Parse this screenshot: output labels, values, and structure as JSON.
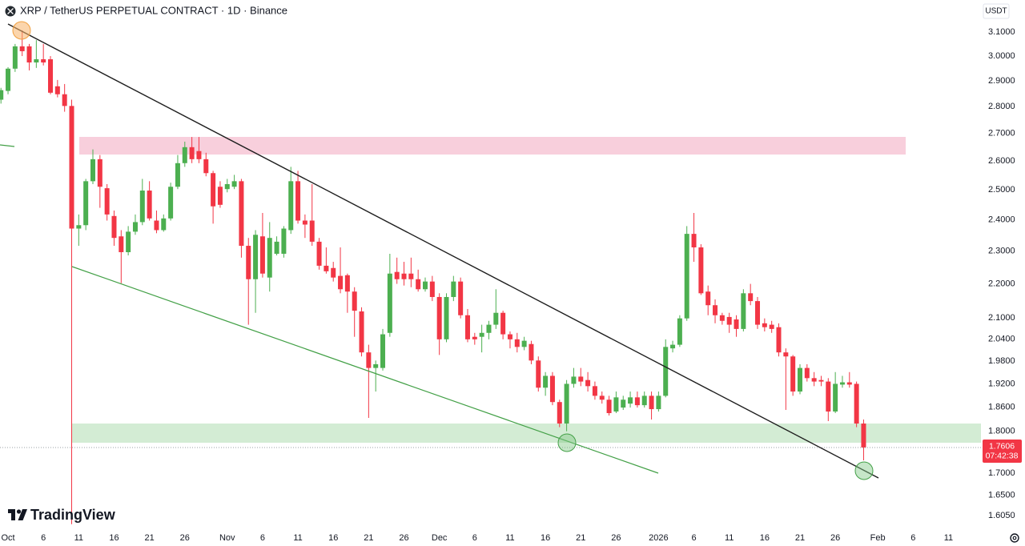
{
  "chart_data": {
    "type": "candlestick",
    "title": "XRP / TetherUS PERPETUAL CONTRACT · 1D · Binance",
    "currency": "USDT",
    "brand": "TradingView",
    "countdown": "07:42:38",
    "log_scale": true,
    "grid": false,
    "up_color": "#4caf50",
    "down_color": "#f23645",
    "ylim": [
      1.577,
      3.238
    ],
    "yticks": [
      {
        "value": 3.1,
        "label": "3.1000"
      },
      {
        "value": 3.0,
        "label": "3.0000"
      },
      {
        "value": 2.9,
        "label": "2.9000"
      },
      {
        "value": 2.8,
        "label": "2.8000"
      },
      {
        "value": 2.7,
        "label": "2.7000"
      },
      {
        "value": 2.6,
        "label": "2.6000"
      },
      {
        "value": 2.5,
        "label": "2.5000"
      },
      {
        "value": 2.4,
        "label": "2.4000"
      },
      {
        "value": 2.3,
        "label": "2.3000"
      },
      {
        "value": 2.2,
        "label": "2.2000"
      },
      {
        "value": 2.1,
        "label": "2.1000"
      },
      {
        "value": 2.04,
        "label": "2.0400"
      },
      {
        "value": 1.98,
        "label": "1.9800"
      },
      {
        "value": 1.92,
        "label": "1.9200"
      },
      {
        "value": 1.86,
        "label": "1.8600"
      },
      {
        "value": 1.8,
        "label": "1.8000"
      },
      {
        "value": 1.7,
        "label": "1.7000"
      },
      {
        "value": 1.65,
        "label": "1.6500"
      },
      {
        "value": 1.605,
        "label": "1.6050"
      }
    ],
    "xticks": [
      {
        "value": "Oct 1",
        "label": "Oct"
      },
      {
        "value": "Oct 6",
        "label": "6"
      },
      {
        "value": "Oct 11",
        "label": "11"
      },
      {
        "value": "Oct 16",
        "label": "16"
      },
      {
        "value": "Oct 21",
        "label": "21"
      },
      {
        "value": "Oct 26",
        "label": "26"
      },
      {
        "value": "Nov 1",
        "label": "Nov"
      },
      {
        "value": "Nov 6",
        "label": "6"
      },
      {
        "value": "Nov 11",
        "label": "11"
      },
      {
        "value": "Nov 16",
        "label": "16"
      },
      {
        "value": "Nov 21",
        "label": "21"
      },
      {
        "value": "Nov 26",
        "label": "26"
      },
      {
        "value": "Dec 1",
        "label": "Dec"
      },
      {
        "value": "Dec 6",
        "label": "6"
      },
      {
        "value": "Dec 11",
        "label": "11"
      },
      {
        "value": "Dec 16",
        "label": "16"
      },
      {
        "value": "Dec 21",
        "label": "21"
      },
      {
        "value": "Dec 26",
        "label": "26"
      },
      {
        "value": "Jan 1",
        "label": "2026"
      },
      {
        "value": "Jan 6",
        "label": "6"
      },
      {
        "value": "Jan 11",
        "label": "11"
      },
      {
        "value": "Jan 16",
        "label": "16"
      },
      {
        "value": "Jan 21",
        "label": "21"
      },
      {
        "value": "Jan 26",
        "label": "26"
      },
      {
        "value": "Feb 1",
        "label": "Feb"
      },
      {
        "value": "Feb 6",
        "label": "6"
      },
      {
        "value": "Feb 11",
        "label": "11"
      }
    ],
    "x": [
      "Sep 30",
      "Oct 1",
      "Oct 2",
      "Oct 3",
      "Oct 4",
      "Oct 5",
      "Oct 6",
      "Oct 7",
      "Oct 8",
      "Oct 9",
      "Oct 10",
      "Oct 11",
      "Oct 12",
      "Oct 13",
      "Oct 14",
      "Oct 15",
      "Oct 16",
      "Oct 17",
      "Oct 18",
      "Oct 19",
      "Oct 20",
      "Oct 21",
      "Oct 22",
      "Oct 23",
      "Oct 24",
      "Oct 25",
      "Oct 26",
      "Oct 27",
      "Oct 28",
      "Oct 29",
      "Oct 30",
      "Oct 31",
      "Nov 1",
      "Nov 2",
      "Nov 3",
      "Nov 4",
      "Nov 5",
      "Nov 6",
      "Nov 7",
      "Nov 8",
      "Nov 9",
      "Nov 10",
      "Nov 11",
      "Nov 12",
      "Nov 13",
      "Nov 14",
      "Nov 15",
      "Nov 16",
      "Nov 17",
      "Nov 18",
      "Nov 19",
      "Nov 20",
      "Nov 21",
      "Nov 22",
      "Nov 23",
      "Nov 24",
      "Nov 25",
      "Nov 26",
      "Nov 27",
      "Nov 28",
      "Nov 29",
      "Nov 30",
      "Dec 1",
      "Dec 2",
      "Dec 3",
      "Dec 4",
      "Dec 5",
      "Dec 6",
      "Dec 7",
      "Dec 8",
      "Dec 9",
      "Dec 10",
      "Dec 11",
      "Dec 12",
      "Dec 13",
      "Dec 14",
      "Dec 15",
      "Dec 16",
      "Dec 17",
      "Dec 18",
      "Dec 19",
      "Dec 20",
      "Dec 21",
      "Dec 22",
      "Dec 23",
      "Dec 24",
      "Dec 25",
      "Dec 26",
      "Dec 27",
      "Dec 28",
      "Dec 29",
      "Dec 30",
      "Dec 31",
      "Jan 1",
      "Jan 2",
      "Jan 3",
      "Jan 4",
      "Jan 5",
      "Jan 6",
      "Jan 7",
      "Jan 8",
      "Jan 9",
      "Jan 10",
      "Jan 11",
      "Jan 12",
      "Jan 13",
      "Jan 14",
      "Jan 15",
      "Jan 16",
      "Jan 17",
      "Jan 18",
      "Jan 19",
      "Jan 20",
      "Jan 21",
      "Jan 22",
      "Jan 23",
      "Jan 24",
      "Jan 25",
      "Jan 26",
      "Jan 27",
      "Jan 28",
      "Jan 29",
      "Jan 30"
    ],
    "open": [
      2.827,
      2.861,
      2.949,
      3.04,
      3.04,
      2.974,
      2.987,
      2.987,
      2.879,
      2.848,
      2.803,
      2.372,
      2.383,
      2.53,
      2.607,
      2.506,
      2.413,
      2.347,
      2.297,
      2.362,
      2.393,
      2.498,
      2.398,
      2.367,
      2.405,
      2.511,
      2.593,
      2.65,
      2.636,
      2.607,
      2.558,
      2.511,
      2.503,
      2.511,
      2.53,
      2.317,
      2.214,
      2.347,
      2.219,
      2.292,
      2.292,
      2.367,
      2.53,
      2.398,
      2.398,
      2.33,
      2.255,
      2.248,
      2.224,
      2.226,
      2.177,
      2.119,
      2.004,
      1.962,
      1.962,
      2.058,
      2.236,
      2.231,
      2.231,
      2.214,
      2.184,
      2.207,
      2.161,
      2.04,
      2.161,
      2.207,
      2.108,
      2.047,
      2.047,
      2.058,
      2.081,
      2.115,
      2.054,
      2.04,
      2.019,
      2.027,
      1.982,
      1.91,
      1.941,
      1.873,
      1.819,
      1.92,
      1.939,
      1.93,
      1.914,
      1.889,
      1.879,
      1.849,
      1.859,
      1.869,
      1.885,
      1.865,
      1.889,
      1.855,
      1.889,
      2.015,
      2.025,
      2.099,
      2.355,
      2.312,
      2.177,
      2.137,
      2.108,
      2.103,
      2.096,
      2.069,
      2.172,
      2.149,
      2.085,
      2.081,
      2.074,
      2.004,
      1.993,
      1.9,
      1.962,
      1.935,
      1.93,
      1.926,
      1.849,
      1.918,
      1.924,
      1.92,
      1.819
    ],
    "high": [
      2.873,
      2.955,
      3.05,
      3.107,
      3.05,
      3.066,
      3.05,
      3.0,
      2.904,
      2.888,
      2.827,
      2.418,
      2.538,
      2.642,
      2.622,
      2.52,
      2.431,
      2.367,
      2.38,
      2.418,
      2.538,
      2.53,
      2.431,
      2.418,
      2.525,
      2.622,
      2.67,
      2.687,
      2.687,
      2.63,
      2.566,
      2.53,
      2.538,
      2.552,
      2.538,
      2.342,
      2.367,
      2.423,
      2.393,
      2.347,
      2.38,
      2.58,
      2.566,
      2.418,
      2.52,
      2.342,
      2.312,
      2.267,
      2.312,
      2.231,
      2.19,
      2.131,
      2.025,
      1.982,
      2.069,
      2.292,
      2.28,
      2.267,
      2.28,
      2.243,
      2.219,
      2.224,
      2.172,
      2.172,
      2.224,
      2.219,
      2.126,
      2.058,
      2.081,
      2.092,
      2.184,
      2.121,
      2.062,
      2.058,
      2.047,
      2.036,
      1.993,
      1.951,
      1.951,
      1.879,
      1.93,
      1.962,
      1.962,
      1.951,
      1.926,
      1.9,
      1.889,
      1.9,
      1.889,
      1.9,
      1.9,
      1.9,
      1.9,
      1.9,
      2.04,
      2.036,
      2.108,
      2.38,
      2.423,
      2.322,
      2.195,
      2.154,
      2.115,
      2.115,
      2.108,
      2.184,
      2.2,
      2.161,
      2.099,
      2.092,
      2.085,
      2.015,
      1.997,
      1.972,
      1.972,
      1.951,
      1.941,
      1.935,
      1.951,
      1.941,
      1.951,
      1.926,
      1.829
    ],
    "low": [
      2.812,
      2.848,
      2.936,
      3.0,
      2.942,
      2.952,
      2.962,
      2.848,
      2.836,
      2.781,
      1.586,
      2.317,
      2.367,
      2.52,
      2.44,
      2.398,
      2.317,
      2.202,
      2.287,
      2.352,
      2.383,
      2.398,
      2.357,
      2.362,
      2.398,
      2.503,
      2.58,
      2.593,
      2.593,
      2.547,
      2.388,
      2.44,
      2.492,
      2.503,
      2.28,
      2.081,
      2.115,
      2.219,
      2.177,
      2.287,
      2.28,
      2.355,
      2.388,
      2.342,
      2.317,
      2.243,
      2.231,
      2.207,
      2.172,
      2.115,
      2.047,
      1.993,
      1.833,
      1.9,
      1.955,
      2.047,
      2.2,
      2.195,
      2.19,
      2.177,
      2.177,
      2.149,
      1.997,
      2.032,
      2.149,
      2.099,
      2.032,
      2.025,
      2.004,
      2.04,
      2.069,
      2.04,
      2.015,
      2.004,
      2.01,
      1.972,
      1.9,
      1.889,
      1.865,
      1.81,
      1.8,
      1.91,
      1.914,
      1.9,
      1.879,
      1.869,
      1.839,
      1.845,
      1.853,
      1.859,
      1.859,
      1.859,
      1.829,
      1.849,
      1.885,
      2.004,
      2.019,
      2.092,
      2.267,
      2.167,
      2.108,
      2.085,
      2.081,
      2.058,
      2.047,
      2.062,
      2.137,
      2.069,
      2.062,
      2.058,
      1.993,
      1.853,
      1.889,
      1.893,
      1.926,
      1.914,
      1.914,
      1.825,
      1.845,
      1.91,
      1.91,
      1.81,
      1.73
    ],
    "close": [
      2.864,
      2.949,
      3.04,
      3.02,
      2.974,
      2.987,
      2.974,
      2.854,
      2.848,
      2.803,
      2.372,
      2.383,
      2.53,
      2.607,
      2.511,
      2.418,
      2.342,
      2.297,
      2.362,
      2.393,
      2.498,
      2.405,
      2.367,
      2.405,
      2.511,
      2.593,
      2.65,
      2.607,
      2.607,
      2.558,
      2.445,
      2.45,
      2.52,
      2.53,
      2.317,
      2.214,
      2.352,
      2.231,
      2.342,
      2.33,
      2.372,
      2.53,
      2.398,
      2.385,
      2.33,
      2.255,
      2.238,
      2.219,
      2.184,
      2.177,
      2.121,
      2.004,
      1.962,
      1.972,
      2.054,
      2.231,
      2.214,
      2.214,
      2.214,
      2.184,
      2.207,
      2.161,
      2.04,
      2.161,
      2.207,
      2.108,
      2.04,
      2.04,
      2.058,
      2.081,
      2.115,
      2.054,
      2.04,
      2.019,
      2.036,
      1.982,
      1.91,
      1.941,
      1.873,
      1.819,
      1.92,
      1.939,
      1.926,
      1.914,
      1.889,
      1.879,
      1.845,
      1.885,
      1.879,
      1.885,
      1.865,
      1.889,
      1.855,
      1.889,
      2.019,
      2.025,
      2.099,
      2.355,
      2.312,
      2.172,
      2.137,
      2.108,
      2.092,
      2.081,
      2.069,
      2.172,
      2.149,
      2.081,
      2.074,
      2.069,
      2.004,
      1.993,
      1.9,
      1.962,
      1.935,
      1.926,
      1.926,
      1.849,
      1.92,
      1.924,
      1.918,
      1.819,
      1.7606
    ]
  }
}
